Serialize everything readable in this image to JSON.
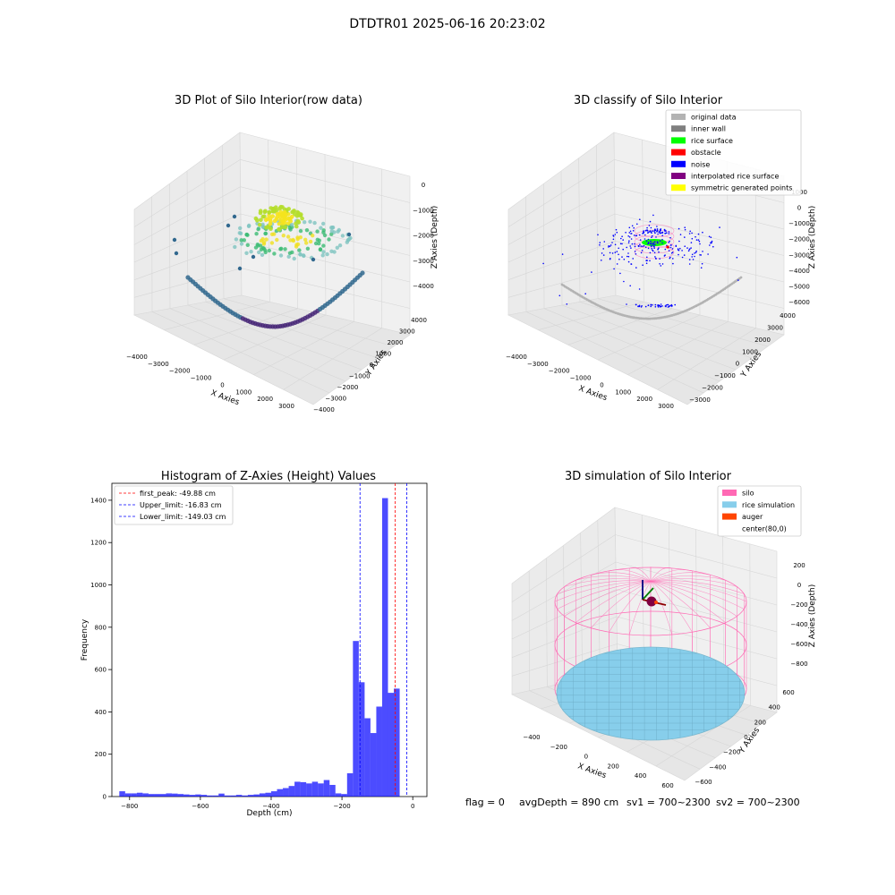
{
  "figure": {
    "suptitle": "DTDTR01 2025-06-16 20:23:02",
    "footer": {
      "flag": "flag = 0",
      "avg_depth": "avgDepth = 890 cm",
      "sv1": "sv1 = 700~2300",
      "sv2": "sv2 = 700~2300"
    }
  },
  "panels": {
    "raw": {
      "title": "3D Plot of Silo Interior(row data)",
      "xlabel": "X Axies",
      "ylabel": "Y Axies",
      "zlabel": "Z Axies (Depth)",
      "xticks": [
        "−4000",
        "−3000",
        "−2000",
        "−1000",
        "0",
        "1000",
        "2000",
        "3000"
      ],
      "yticks": [
        "−4000",
        "−3000",
        "−2000",
        "−1000",
        "0",
        "1000",
        "2000",
        "3000",
        "4000"
      ],
      "zticks": [
        "0",
        "−1000",
        "−2000",
        "−3000",
        "−4000"
      ],
      "colors": {
        "high": "#f0e020",
        "mid": "#3cbc74",
        "low": "#31688e",
        "lowest": "#482878"
      }
    },
    "classify": {
      "title": "3D classify of Silo Interior",
      "xlabel": "X Axies",
      "ylabel": "Y Axies",
      "zlabel": "Z Axies (Depth)",
      "xticks": [
        "−4000",
        "−3000",
        "−2000",
        "−1000",
        "0",
        "1000",
        "2000",
        "3000"
      ],
      "yticks": [
        "−3000",
        "−2000",
        "−1000",
        "0",
        "1000",
        "2000",
        "3000",
        "4000"
      ],
      "zticks": [
        "1000",
        "0",
        "−1000",
        "−2000",
        "−3000",
        "−4000",
        "−5000",
        "−6000"
      ],
      "legend": [
        {
          "label": "original data",
          "color": "#b3b3b3"
        },
        {
          "label": "inner wall",
          "color": "#808080"
        },
        {
          "label": "rice surface",
          "color": "#00ff00"
        },
        {
          "label": "obstacle",
          "color": "#ff0000"
        },
        {
          "label": "noise",
          "color": "#0000ff"
        },
        {
          "label": "interpolated rice surface",
          "color": "#800080"
        },
        {
          "label": "symmetric generated points",
          "color": "#ffff00"
        }
      ]
    },
    "simulation": {
      "title": "3D simulation of Silo Interior",
      "xlabel": "X Axies",
      "ylabel": "Y Axies",
      "zlabel": "Z Axies (Depth)",
      "xticks": [
        "−400",
        "−200",
        "0",
        "200",
        "400",
        "600"
      ],
      "yticks": [
        "−600",
        "−400",
        "−200",
        "0",
        "200",
        "400",
        "600"
      ],
      "zticks": [
        "200",
        "0",
        "−200",
        "−400",
        "−600",
        "−800"
      ],
      "legend": [
        {
          "label": "silo",
          "color": "#ff69b4"
        },
        {
          "label": "rice simulation",
          "color": "#87ceeb"
        },
        {
          "label": "auger",
          "color": "#ff4500"
        },
        {
          "label": "center(80,0)",
          "color": ""
        }
      ]
    }
  },
  "chart_data": {
    "type": "bar",
    "title": "Histogram of Z-Axies (Height) Values",
    "xlabel": "Depth (cm)",
    "ylabel": "Frequency",
    "xlim": [
      -850,
      40
    ],
    "ylim": [
      0,
      1480
    ],
    "xticks": [
      -800,
      -600,
      -400,
      -200,
      0
    ],
    "xtick_labels": [
      "−800",
      "−600",
      "−400",
      "−200",
      "0"
    ],
    "yticks": [
      0,
      200,
      400,
      600,
      800,
      1000,
      1200,
      1400
    ],
    "bar_color": "#0000ff",
    "bin_start": -829,
    "bin_width": 16.5,
    "values": [
      25,
      15,
      15,
      18,
      15,
      12,
      12,
      12,
      15,
      14,
      12,
      10,
      8,
      10,
      8,
      5,
      5,
      14,
      5,
      5,
      8,
      5,
      8,
      10,
      15,
      18,
      25,
      35,
      40,
      50,
      70,
      68,
      62,
      70,
      62,
      78,
      55,
      15,
      12,
      110,
      735,
      540,
      370,
      300,
      425,
      1410,
      490,
      510
    ],
    "lines": [
      {
        "name": "first_peak: -49.88 cm",
        "x": -49.88,
        "color": "#ff0000"
      },
      {
        "name": "Upper_limit: -16.83 cm",
        "x": -16.83,
        "color": "#0000ff"
      },
      {
        "name": "Lower_limit: -149.03 cm",
        "x": -149.03,
        "color": "#0000ff"
      }
    ],
    "legend_position": "upper-left"
  }
}
